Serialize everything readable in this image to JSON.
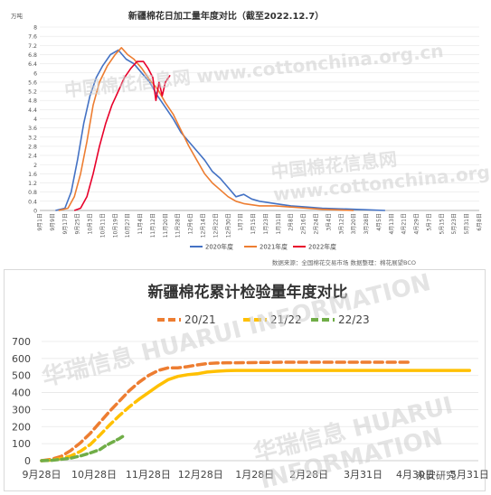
{
  "chart_data": [
    {
      "type": "line",
      "title": "新疆棉花日加工量年度对比（截至2022.12.7）",
      "ylabel": "万吨",
      "ylim": [
        0,
        8
      ],
      "yticks": [
        "0",
        "0.4",
        "0.8",
        "1.2",
        "1.6",
        "2",
        "2.4",
        "2.8",
        "3.2",
        "3.6",
        "4",
        "4.4",
        "4.8",
        "5.2",
        "5.6",
        "6",
        "6.4",
        "6.8",
        "7.2",
        "7.6",
        "8"
      ],
      "x_date_labels": [
        "9月1日",
        "9月9日",
        "9月17日",
        "9月25日",
        "10月3日",
        "10月11日",
        "10月19日",
        "10月27日",
        "11月4日",
        "11月12日",
        "11月20日",
        "11月28日",
        "12月6日",
        "12月14日",
        "12月22日",
        "12月30日",
        "1月7日",
        "1月15日",
        "1月23日",
        "1月31日",
        "2月8日",
        "2月16日",
        "2月24日",
        "3月4日",
        "3月12日",
        "3月20日",
        "3月28日",
        "4月5日",
        "4月13日",
        "4月21日",
        "4月29日",
        "5月7日",
        "5月15日",
        "5月23日",
        "5月31日",
        "6月8日"
      ],
      "legend_position": "bottom",
      "source_note": "数据来源：全国棉花交易市场   数据整理：棉花展望BCO",
      "watermark": "中国棉花信息网 www.cottonchina.org.cn",
      "series": [
        {
          "name": "2020年度",
          "color": "#4472c4",
          "points": [
            [
              10,
              0
            ],
            [
              16,
              0.1
            ],
            [
              20,
              0.8
            ],
            [
              24,
              2.2
            ],
            [
              28,
              3.8
            ],
            [
              32,
              5.0
            ],
            [
              36,
              5.8
            ],
            [
              40,
              6.3
            ],
            [
              45,
              6.8
            ],
            [
              50,
              7.0
            ],
            [
              55,
              6.6
            ],
            [
              60,
              6.4
            ],
            [
              65,
              6.0
            ],
            [
              70,
              5.6
            ],
            [
              75,
              5.0
            ],
            [
              80,
              4.5
            ],
            [
              85,
              4.0
            ],
            [
              90,
              3.4
            ],
            [
              95,
              3.0
            ],
            [
              100,
              2.6
            ],
            [
              105,
              2.2
            ],
            [
              110,
              1.7
            ],
            [
              115,
              1.4
            ],
            [
              120,
              1.0
            ],
            [
              125,
              0.6
            ],
            [
              130,
              0.7
            ],
            [
              135,
              0.5
            ],
            [
              140,
              0.4
            ],
            [
              150,
              0.3
            ],
            [
              160,
              0.2
            ],
            [
              170,
              0.15
            ],
            [
              180,
              0.1
            ],
            [
              200,
              0.05
            ],
            [
              220,
              0
            ]
          ]
        },
        {
          "name": "2021年度",
          "color": "#ed7d31",
          "points": [
            [
              12,
              0
            ],
            [
              18,
              0.1
            ],
            [
              22,
              0.6
            ],
            [
              26,
              1.6
            ],
            [
              30,
              3.0
            ],
            [
              34,
              4.6
            ],
            [
              38,
              5.6
            ],
            [
              43,
              6.3
            ],
            [
              48,
              6.8
            ],
            [
              52,
              7.1
            ],
            [
              56,
              6.8
            ],
            [
              60,
              6.6
            ],
            [
              65,
              6.2
            ],
            [
              70,
              5.7
            ],
            [
              75,
              5.3
            ],
            [
              80,
              4.7
            ],
            [
              85,
              4.2
            ],
            [
              90,
              3.5
            ],
            [
              95,
              2.8
            ],
            [
              100,
              2.2
            ],
            [
              105,
              1.6
            ],
            [
              110,
              1.2
            ],
            [
              115,
              0.9
            ],
            [
              120,
              0.6
            ],
            [
              125,
              0.4
            ],
            [
              130,
              0.3
            ],
            [
              135,
              0.25
            ],
            [
              140,
              0.2
            ],
            [
              150,
              0.2
            ],
            [
              160,
              0.15
            ],
            [
              170,
              0.1
            ],
            [
              180,
              0.05
            ],
            [
              200,
              0
            ]
          ]
        },
        {
          "name": "2022年度",
          "color": "#e8002a",
          "points": [
            [
              22,
              0
            ],
            [
              26,
              0.1
            ],
            [
              30,
              0.6
            ],
            [
              34,
              1.6
            ],
            [
              38,
              2.8
            ],
            [
              42,
              3.8
            ],
            [
              46,
              4.6
            ],
            [
              50,
              5.2
            ],
            [
              54,
              5.8
            ],
            [
              58,
              6.2
            ],
            [
              62,
              6.5
            ],
            [
              66,
              6.5
            ],
            [
              69,
              6.2
            ],
            [
              72,
              5.8
            ],
            [
              74,
              4.8
            ],
            [
              76,
              5.6
            ],
            [
              78,
              5.0
            ],
            [
              80,
              5.6
            ],
            [
              83,
              5.9
            ]
          ]
        }
      ]
    },
    {
      "type": "line",
      "title": "新疆棉花累计检验量年度对比",
      "ylim": [
        0,
        700
      ],
      "yticks": [
        "0",
        "100",
        "200",
        "300",
        "400",
        "500",
        "600",
        "700"
      ],
      "x_date_labels": [
        "9月28日",
        "10月28日",
        "11月28日",
        "12月28日",
        "1月28日",
        "2月28日",
        "3月31日",
        "4月30日",
        "5月31日"
      ],
      "legend_position": "top",
      "watermark": "华瑞信息 HUARUI INFORMATION",
      "series": [
        {
          "name": "20/21",
          "color": "#ed7d31",
          "points": [
            [
              0,
              0
            ],
            [
              10,
              8
            ],
            [
              20,
              25
            ],
            [
              30,
              60
            ],
            [
              40,
              105
            ],
            [
              50,
              160
            ],
            [
              60,
              225
            ],
            [
              70,
              290
            ],
            [
              80,
              350
            ],
            [
              90,
              410
            ],
            [
              100,
              460
            ],
            [
              110,
              500
            ],
            [
              120,
              530
            ],
            [
              130,
              545
            ],
            [
              140,
              545
            ],
            [
              150,
              552
            ],
            [
              160,
              562
            ],
            [
              170,
              570
            ],
            [
              180,
              573
            ],
            [
              190,
              575
            ],
            [
              200,
              575
            ],
            [
              250,
              578
            ],
            [
              300,
              578
            ],
            [
              330,
              578
            ],
            [
              380,
              578
            ]
          ]
        },
        {
          "name": "21/22",
          "color": "#ffc000",
          "points": [
            [
              0,
              0
            ],
            [
              10,
              3
            ],
            [
              20,
              12
            ],
            [
              30,
              28
            ],
            [
              40,
              55
            ],
            [
              50,
              95
            ],
            [
              60,
              150
            ],
            [
              70,
              210
            ],
            [
              80,
              265
            ],
            [
              90,
              315
            ],
            [
              100,
              360
            ],
            [
              110,
              400
            ],
            [
              120,
              440
            ],
            [
              130,
              475
            ],
            [
              140,
              495
            ],
            [
              150,
              505
            ],
            [
              160,
              510
            ],
            [
              170,
              520
            ],
            [
              180,
              525
            ],
            [
              190,
              528
            ],
            [
              200,
              530
            ],
            [
              250,
              530
            ],
            [
              300,
              530
            ],
            [
              350,
              530
            ],
            [
              400,
              530
            ],
            [
              440,
              530
            ]
          ]
        },
        {
          "name": "22/23",
          "color": "#70ad47",
          "points": [
            [
              0,
              0
            ],
            [
              10,
              2
            ],
            [
              20,
              8
            ],
            [
              30,
              15
            ],
            [
              40,
              28
            ],
            [
              50,
              45
            ],
            [
              60,
              65
            ],
            [
              65,
              85
            ],
            [
              70,
              100
            ],
            [
              75,
              115
            ],
            [
              80,
              130
            ],
            [
              85,
              148
            ]
          ]
        }
      ]
    }
  ],
  "watermark_bottom_right": "永安研究"
}
